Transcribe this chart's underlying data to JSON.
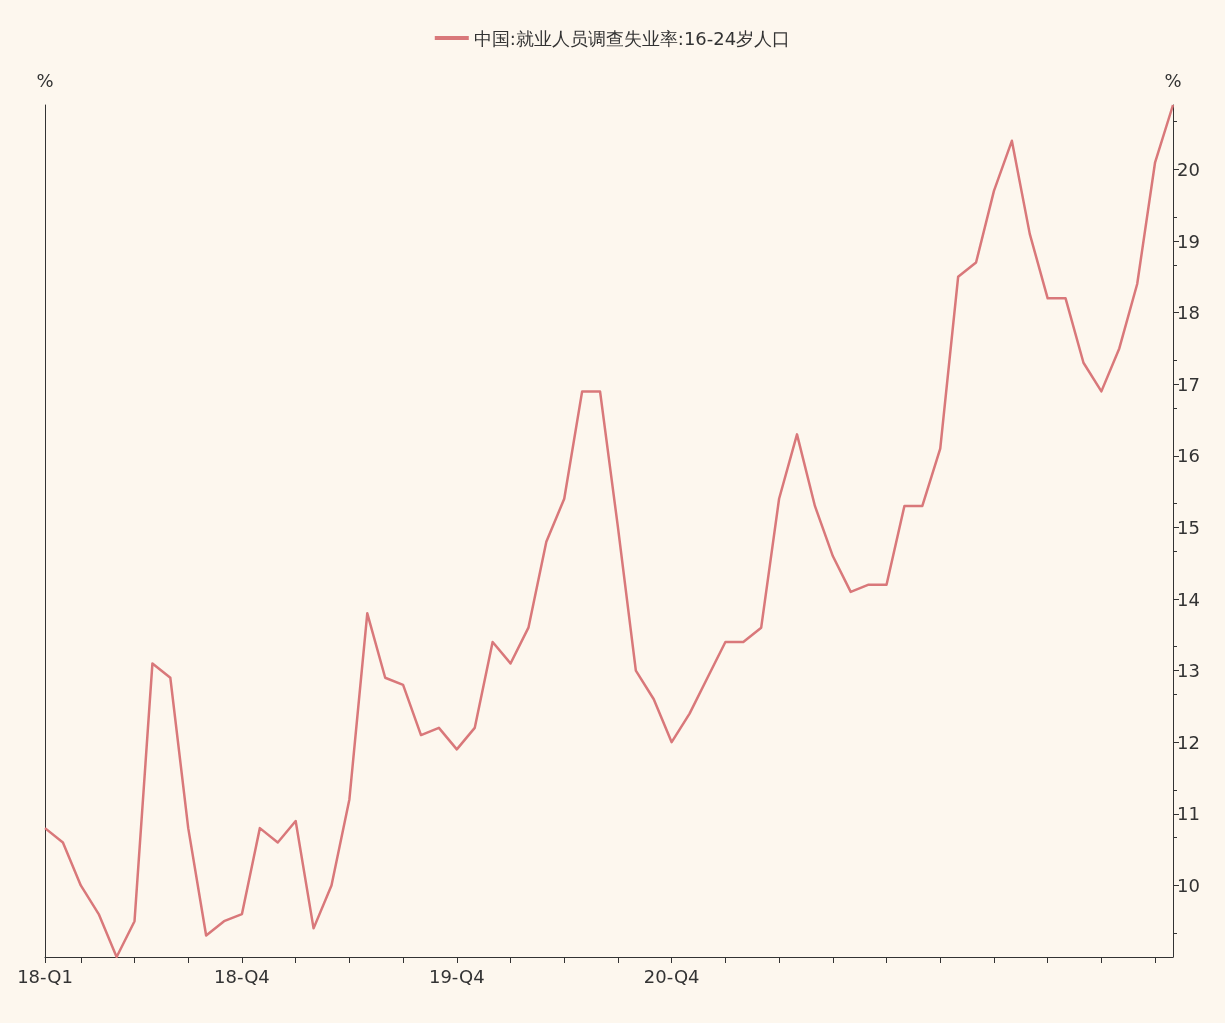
{
  "chart_data": {
    "type": "line",
    "categories": [
      "18-Q1",
      null,
      null,
      null,
      null,
      null,
      null,
      null,
      null,
      null,
      null,
      "18-Q4",
      null,
      null,
      null,
      null,
      null,
      null,
      null,
      null,
      null,
      null,
      null,
      "19-Q4",
      null,
      null,
      null,
      null,
      null,
      null,
      null,
      null,
      null,
      null,
      null,
      "20-Q4",
      null,
      null,
      null,
      null,
      null,
      null,
      null,
      null,
      null,
      null,
      null,
      null,
      null,
      null,
      null,
      null,
      null,
      null,
      null,
      null,
      null,
      null,
      null,
      null,
      null,
      null,
      null,
      null
    ],
    "series": [
      {
        "name": "中国:就业人员调查失业率:16-24岁人口",
        "color": "#d9787a",
        "axis": "y2",
        "values": [
          10.8,
          10.6,
          10.0,
          9.6,
          9.0,
          9.5,
          13.1,
          12.9,
          10.8,
          9.3,
          9.5,
          9.6,
          10.8,
          10.6,
          10.9,
          9.4,
          10.0,
          11.2,
          13.8,
          12.9,
          12.8,
          12.1,
          12.2,
          11.9,
          12.2,
          13.4,
          13.1,
          13.6,
          14.8,
          15.4,
          16.9,
          16.9,
          15.0,
          13.0,
          12.6,
          12.0,
          12.4,
          12.9,
          13.4,
          13.4,
          13.6,
          15.4,
          16.3,
          15.3,
          14.6,
          14.1,
          14.2,
          14.2,
          15.3,
          15.3,
          16.1,
          18.5,
          18.7,
          19.7,
          20.4,
          19.1,
          18.2,
          18.2,
          17.3,
          16.9,
          17.5,
          18.4,
          20.1,
          20.9
        ]
      }
    ],
    "ylabel": "%",
    "y2label": "%",
    "y2lim": [
      9,
      20.9
    ],
    "y2ticks": [
      10,
      11,
      12,
      13,
      14,
      15,
      16,
      17,
      18,
      19,
      20
    ],
    "legend": "top",
    "grid": false,
    "marker": "none",
    "line_style": "solid"
  }
}
